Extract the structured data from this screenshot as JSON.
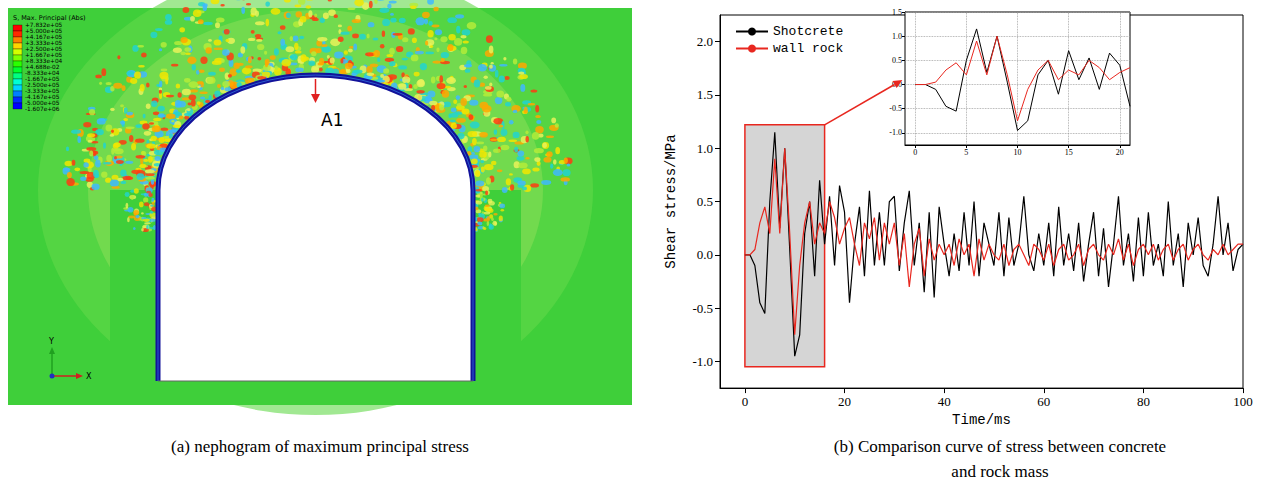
{
  "panel_a": {
    "caption": "(a) nephogram of maximum principal stress",
    "legend_title": "S, Max. Principal (Abs)",
    "contour_levels": [
      {
        "value": 783200,
        "label": "+7.832e+05"
      },
      {
        "value": 500000,
        "label": "+5.000e+05"
      },
      {
        "value": 416700,
        "label": "+4.167e+05"
      },
      {
        "value": 333300,
        "label": "+3.333e+05"
      },
      {
        "value": 250000,
        "label": "+2.500e+05"
      },
      {
        "value": 166700,
        "label": "+1.667e+05"
      },
      {
        "value": 83330,
        "label": "+8.333e+04"
      },
      {
        "value": 0.04688,
        "label": "+4.688e-02"
      },
      {
        "value": -83330,
        "label": "-8.333e+04"
      },
      {
        "value": -166700,
        "label": "-1.667e+05"
      },
      {
        "value": -250000,
        "label": "-2.500e+05"
      },
      {
        "value": -333300,
        "label": "-3.333e+05"
      },
      {
        "value": -416700,
        "label": "-4.167e+05"
      },
      {
        "value": -500000,
        "label": "-5.000e+05"
      },
      {
        "value": -1607000,
        "label": "-1.607e+06"
      }
    ],
    "point_label": "A1",
    "axis_labels": {
      "x": "X",
      "y": "Y"
    }
  },
  "caption_b": "(b) Comparison curve of stress between concrete and rock mass",
  "chart_data": [
    {
      "type": "line",
      "x_label": "Time/ms",
      "y_label": "Shear stress/MPa",
      "x": [
        0,
        1,
        2,
        3,
        4,
        5,
        6,
        7,
        8,
        9,
        10,
        11,
        12,
        13,
        14,
        15,
        16,
        17,
        18,
        19,
        20,
        21,
        22,
        23,
        24,
        25,
        26,
        27,
        28,
        29,
        30,
        31,
        32,
        33,
        34,
        35,
        36,
        37,
        38,
        39,
        40,
        41,
        42,
        43,
        44,
        45,
        46,
        47,
        48,
        49,
        50,
        51,
        52,
        53,
        54,
        55,
        56,
        57,
        58,
        59,
        60,
        61,
        62,
        63,
        64,
        65,
        66,
        67,
        68,
        69,
        70,
        71,
        72,
        73,
        74,
        75,
        76,
        77,
        78,
        79,
        80,
        81,
        82,
        83,
        84,
        85,
        86,
        87,
        88,
        89,
        90,
        91,
        92,
        93,
        94,
        95,
        96,
        97,
        98,
        99,
        100
      ],
      "series": [
        {
          "name": "Shotcrete",
          "color": "#000000",
          "values": [
            0,
            0,
            -0.1,
            -0.45,
            -0.55,
            0.5,
            1.15,
            0.25,
            1.0,
            0.05,
            -0.95,
            -0.75,
            0.2,
            0.5,
            -0.2,
            0.7,
            0.1,
            0.55,
            -0.1,
            0.65,
            0.4,
            -0.45,
            0.1,
            0.45,
            -0.2,
            0.6,
            -0.1,
            0.4,
            -0.1,
            0.5,
            0.55,
            -0.15,
            0.3,
            0.6,
            -0.1,
            0.3,
            -0.35,
            0.4,
            -0.4,
            0.45,
            0.1,
            -0.2,
            0.2,
            -0.15,
            0.4,
            -0.1,
            0.5,
            -0.2,
            0.3,
            0.1,
            -0.1,
            0.4,
            -0.2,
            0.35,
            -0.1,
            0.1,
            0.55,
            0,
            -0.15,
            0.2,
            -0.1,
            0.3,
            -0.2,
            0.45,
            -0.1,
            0.2,
            -0.15,
            0.3,
            -0.25,
            0.1,
            0.4,
            -0.2,
            0.25,
            -0.3,
            0.1,
            0.55,
            -0.1,
            0.2,
            -0.25,
            0.35,
            -0.2,
            0.4,
            -0.1,
            0.1,
            -0.2,
            0.5,
            -0.1,
            0.2,
            -0.3,
            0.3,
            0,
            0.35,
            -0.1,
            -0.2,
            0.1,
            0.55,
            0,
            0.3,
            -0.15,
            0.05,
            0.1
          ]
        },
        {
          "name": "wall rock",
          "color": "#e8271f",
          "values": [
            0,
            0,
            0.05,
            0.3,
            0.45,
            0.2,
            0.9,
            0.2,
            1.0,
            0.2,
            -0.75,
            -0.1,
            0.3,
            0.5,
            0.1,
            0.3,
            0.2,
            0.5,
            0.35,
            0.1,
            0.25,
            0.35,
            0.1,
            -0.1,
            0.3,
            0.15,
            0.35,
            -0.05,
            0.3,
            0.1,
            0.3,
            -0.1,
            0.2,
            -0.3,
            0.1,
            0.25,
            -0.2,
            0.15,
            -0.05,
            0.1,
            0,
            0.1,
            -0.1,
            0.15,
            0,
            0.1,
            -0.2,
            0.15,
            -0.05,
            0.1,
            0,
            -0.05,
            0.1,
            -0.1,
            0.05,
            0.1,
            0,
            -0.1,
            0.1,
            0.05,
            -0.05,
            0.1,
            -0.1,
            0.05,
            0.1,
            -0.05,
            0,
            0.1,
            -0.1,
            0.05,
            0.1,
            0,
            -0.05,
            0.1,
            0,
            0.15,
            -0.05,
            0.1,
            -0.1,
            0.05,
            0.1,
            0,
            0.1,
            -0.05,
            0.05,
            0.1,
            -0.05,
            0.05,
            0.1,
            -0.05,
            0.05,
            0.1,
            0,
            -0.05,
            0.05,
            0,
            0.1,
            0,
            0.05,
            0.1,
            0.1
          ]
        }
      ],
      "xlim": [
        -5,
        100
      ],
      "xticks": [
        0,
        20,
        40,
        60,
        80,
        100
      ],
      "ylim": [
        -1.25,
        2.25
      ],
      "yticks": [
        {
          "value": -1,
          "label": "-1.0"
        },
        -0.5,
        {
          "value": 0,
          "label": "0.0"
        },
        0.5,
        {
          "value": 1,
          "label": "1.0"
        },
        1.5,
        {
          "value": 2,
          "label": "2.0"
        }
      ],
      "grid": false,
      "legend": "upper left",
      "zoom_region": {
        "x": [
          0,
          16
        ],
        "y": [
          -1.05,
          1.22
        ]
      }
    },
    {
      "type": "line",
      "x": [
        0,
        1,
        2,
        3,
        4,
        5,
        6,
        7,
        8,
        9,
        10,
        11,
        12,
        13,
        14,
        15,
        16,
        17,
        18,
        19,
        20,
        21
      ],
      "series": [
        {
          "color": "#000000",
          "values": [
            0,
            0,
            -0.1,
            -0.45,
            -0.55,
            0.5,
            1.15,
            0.25,
            1.0,
            0.05,
            -0.95,
            -0.75,
            0.2,
            0.5,
            -0.2,
            0.7,
            0.1,
            0.55,
            -0.1,
            0.65,
            0.4,
            -0.45
          ]
        },
        {
          "color": "#e8271f",
          "values": [
            0,
            0,
            0.05,
            0.3,
            0.45,
            0.2,
            0.9,
            0.2,
            1.0,
            0.2,
            -0.75,
            -0.1,
            0.3,
            0.5,
            0.1,
            0.3,
            0.2,
            0.5,
            0.35,
            0.1,
            0.25,
            0.35
          ]
        }
      ],
      "xlim": [
        -1,
        21
      ],
      "xticks": [
        0,
        5,
        10,
        15,
        20
      ],
      "ylim": [
        -1.25,
        1.5
      ],
      "yticks": [
        {
          "value": -1,
          "label": "-1.0"
        },
        -0.5,
        {
          "value": 0,
          "label": "0.0"
        },
        0.5,
        {
          "value": 1,
          "label": "1.0"
        },
        1.5
      ],
      "grid": true
    }
  ]
}
